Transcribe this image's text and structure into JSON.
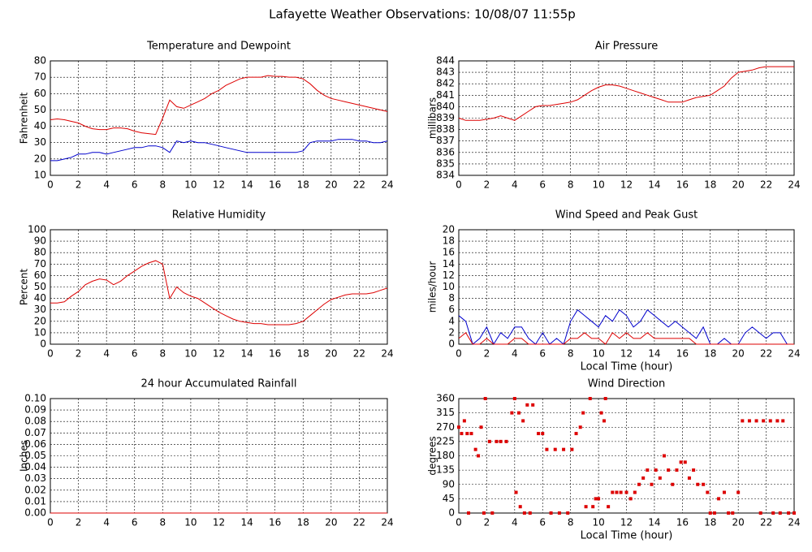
{
  "title": "Lafayette Weather Observations: 10/08/07 11:55p",
  "chart_data": [
    {
      "type": "line",
      "title": "Temperature and Dewpoint",
      "ylabel": "Fahrenheit",
      "x": [
        0,
        0.5,
        1,
        1.5,
        2,
        2.5,
        3,
        3.5,
        4,
        4.5,
        5,
        5.5,
        6,
        6.5,
        7,
        7.5,
        8,
        8.5,
        9,
        9.5,
        10,
        10.5,
        11,
        11.5,
        12,
        12.5,
        13,
        13.5,
        14,
        14.5,
        15,
        15.5,
        16,
        16.5,
        17,
        17.5,
        18,
        18.5,
        19,
        19.5,
        20,
        20.5,
        21,
        21.5,
        22,
        22.5,
        23,
        23.5,
        24
      ],
      "series": [
        {
          "color": "#dd0000",
          "values": [
            44,
            44.5,
            44,
            43,
            42,
            40,
            38.5,
            38,
            38,
            39,
            39,
            38.5,
            37,
            36,
            35.5,
            35,
            45,
            56,
            52,
            51,
            53,
            55,
            57,
            60,
            62,
            65,
            67,
            69,
            70,
            70,
            70,
            71,
            70.5,
            70.5,
            70,
            70,
            69,
            66,
            62,
            59,
            57,
            56,
            55,
            54,
            53,
            52,
            51,
            50,
            49
          ]
        },
        {
          "color": "#0000cc",
          "values": [
            19,
            19,
            20,
            21,
            23,
            23,
            24,
            24,
            23,
            24,
            25,
            26,
            27,
            27,
            28,
            28,
            27,
            24,
            31,
            30,
            31,
            30,
            30,
            29,
            28,
            27,
            26,
            25,
            24,
            24,
            24,
            24,
            24,
            24,
            24,
            24,
            25,
            30,
            31,
            31,
            31,
            32,
            32,
            32,
            31,
            31,
            30,
            30,
            31
          ]
        }
      ],
      "xlim": [
        0,
        24
      ],
      "xticks": [
        0,
        2,
        4,
        6,
        8,
        10,
        12,
        14,
        16,
        18,
        20,
        22,
        24
      ],
      "ylim": [
        10,
        80
      ],
      "yticks": [
        10,
        20,
        30,
        40,
        50,
        60,
        70,
        80
      ],
      "grid": true
    },
    {
      "type": "line",
      "title": "Air Pressure",
      "ylabel": "millibars",
      "x": [
        0,
        0.5,
        1,
        1.5,
        2,
        2.5,
        3,
        3.5,
        4,
        4.5,
        5,
        5.5,
        6,
        6.5,
        7,
        7.5,
        8,
        8.5,
        9,
        9.5,
        10,
        10.5,
        11,
        11.5,
        12,
        12.5,
        13,
        13.5,
        14,
        14.5,
        15,
        15.5,
        16,
        16.5,
        17,
        17.5,
        18,
        18.5,
        19,
        19.5,
        20,
        20.5,
        21,
        21.5,
        22,
        22.5,
        23,
        23.5,
        24
      ],
      "series": [
        {
          "color": "#dd0000",
          "values": [
            839,
            838.8,
            838.8,
            838.8,
            838.9,
            839,
            839.2,
            839,
            838.8,
            839.2,
            839.6,
            840,
            840.1,
            840.1,
            840.2,
            840.3,
            840.4,
            840.6,
            841,
            841.4,
            841.7,
            841.9,
            841.9,
            841.8,
            841.6,
            841.4,
            841.2,
            841,
            840.8,
            840.6,
            840.4,
            840.4,
            840.4,
            840.6,
            840.8,
            840.9,
            841,
            841.4,
            841.8,
            842.5,
            843,
            843.1,
            843.2,
            843.4,
            843.5,
            843.5,
            843.5,
            843.5,
            843.5
          ]
        }
      ],
      "xlim": [
        0,
        24
      ],
      "xticks": [
        0,
        2,
        4,
        6,
        8,
        10,
        12,
        14,
        16,
        18,
        20,
        22,
        24
      ],
      "ylim": [
        834,
        844
      ],
      "yticks": [
        834,
        835,
        836,
        837,
        838,
        839,
        840,
        841,
        842,
        843,
        844
      ],
      "grid": true
    },
    {
      "type": "line",
      "title": "Relative Humidity",
      "ylabel": "Percent",
      "x": [
        0,
        0.5,
        1,
        1.5,
        2,
        2.5,
        3,
        3.5,
        4,
        4.5,
        5,
        5.5,
        6,
        6.5,
        7,
        7.5,
        8,
        8.5,
        9,
        9.5,
        10,
        10.5,
        11,
        11.5,
        12,
        12.5,
        13,
        13.5,
        14,
        14.5,
        15,
        15.5,
        16,
        16.5,
        17,
        17.5,
        18,
        18.5,
        19,
        19.5,
        20,
        20.5,
        21,
        21.5,
        22,
        22.5,
        23,
        23.5,
        24
      ],
      "series": [
        {
          "color": "#dd0000",
          "values": [
            36,
            36,
            37,
            42,
            46,
            52,
            55,
            57,
            56,
            52,
            55,
            60,
            64,
            68,
            71,
            73,
            70,
            40,
            50,
            45,
            42,
            40,
            36,
            32,
            28,
            25,
            22,
            20,
            19,
            18,
            18,
            17,
            17,
            17,
            17,
            18,
            20,
            25,
            30,
            35,
            39,
            41,
            43,
            44,
            44,
            44,
            45,
            47,
            49
          ]
        }
      ],
      "xlim": [
        0,
        24
      ],
      "xticks": [
        0,
        2,
        4,
        6,
        8,
        10,
        12,
        14,
        16,
        18,
        20,
        22,
        24
      ],
      "ylim": [
        0,
        100
      ],
      "yticks": [
        0,
        10,
        20,
        30,
        40,
        50,
        60,
        70,
        80,
        90,
        100
      ],
      "grid": true
    },
    {
      "type": "line",
      "title": "Wind Speed and Peak Gust",
      "ylabel": "miles/hour",
      "xlabel": "Local Time (hour)",
      "x": [
        0,
        0.5,
        1,
        1.5,
        2,
        2.5,
        3,
        3.5,
        4,
        4.5,
        5,
        5.5,
        6,
        6.5,
        7,
        7.5,
        8,
        8.5,
        9,
        9.5,
        10,
        10.5,
        11,
        11.5,
        12,
        12.5,
        13,
        13.5,
        14,
        14.5,
        15,
        15.5,
        16,
        16.5,
        17,
        17.5,
        18,
        18.5,
        19,
        19.5,
        20,
        20.5,
        21,
        21.5,
        22,
        22.5,
        23,
        23.5,
        24
      ],
      "series": [
        {
          "color": "#0000cc",
          "values": [
            5,
            4,
            0,
            1,
            3,
            0,
            2,
            1,
            3,
            3,
            1,
            0,
            2,
            0,
            1,
            0,
            4,
            6,
            5,
            4,
            3,
            5,
            4,
            6,
            5,
            3,
            4,
            6,
            5,
            4,
            3,
            4,
            3,
            2,
            1,
            3,
            0,
            0,
            1,
            0,
            0,
            2,
            3,
            2,
            1,
            2,
            2,
            0,
            0
          ]
        },
        {
          "color": "#dd0000",
          "values": [
            1,
            2,
            0,
            0,
            1,
            0,
            0,
            0,
            1,
            1,
            0,
            0,
            0,
            0,
            0,
            0,
            1,
            1,
            2,
            1,
            1,
            0,
            2,
            1,
            2,
            1,
            1,
            2,
            1,
            1,
            1,
            1,
            1,
            1,
            0,
            0,
            0,
            0,
            0,
            0,
            0,
            0,
            0,
            0,
            0,
            0,
            0,
            0,
            0
          ]
        }
      ],
      "xlim": [
        0,
        24
      ],
      "xticks": [
        0,
        2,
        4,
        6,
        8,
        10,
        12,
        14,
        16,
        18,
        20,
        22,
        24
      ],
      "ylim": [
        0,
        20
      ],
      "yticks": [
        0,
        2,
        4,
        6,
        8,
        10,
        12,
        14,
        16,
        18,
        20
      ],
      "grid": true
    },
    {
      "type": "line",
      "title": "24 hour Accumulated Rainfall",
      "ylabel": "Inches",
      "x": [
        0,
        24
      ],
      "series": [
        {
          "color": "#dd0000",
          "values": [
            0,
            0
          ]
        }
      ],
      "xlim": [
        0,
        24
      ],
      "xticks": [
        0,
        2,
        4,
        6,
        8,
        10,
        12,
        14,
        16,
        18,
        20,
        22,
        24
      ],
      "ylim": [
        0,
        0.1
      ],
      "yticks": [
        {
          "value": 0,
          "label": "0.00"
        },
        {
          "value": 0.01,
          "label": "0.01"
        },
        {
          "value": 0.02,
          "label": "0.02"
        },
        {
          "value": 0.03,
          "label": "0.03"
        },
        {
          "value": 0.04,
          "label": "0.04"
        },
        {
          "value": 0.05,
          "label": "0.05"
        },
        {
          "value": 0.06,
          "label": "0.06"
        },
        {
          "value": 0.07,
          "label": "0.07"
        },
        {
          "value": 0.08,
          "label": "0.08"
        },
        {
          "value": 0.09,
          "label": "0.09"
        },
        {
          "value": 0.1,
          "label": "0.10"
        }
      ],
      "grid": true
    },
    {
      "type": "scatter",
      "title": "Wind Direction",
      "ylabel": "degrees",
      "xlabel": "Local Time (hour)",
      "color": "#dd0000",
      "x": [
        0,
        0.2,
        0.4,
        0.6,
        0.9,
        0.7,
        1.2,
        1.4,
        1.6,
        1.8,
        1.9,
        2.2,
        2.4,
        2.7,
        3,
        3.4,
        3.8,
        4,
        4.1,
        4.3,
        4.4,
        4.6,
        4.7,
        4.9,
        5.1,
        5.3,
        5.7,
        6,
        6.3,
        6.6,
        6.9,
        7.2,
        7.5,
        7.8,
        8.1,
        8.4,
        8.7,
        8.9,
        9.1,
        9.4,
        9.6,
        9.8,
        10,
        10.2,
        10.4,
        10.5,
        10.7,
        11,
        11.3,
        11.6,
        12,
        12.3,
        12.6,
        12.9,
        13.2,
        13.5,
        13.8,
        14.1,
        14.4,
        14.7,
        15,
        15.3,
        15.6,
        15.9,
        16.2,
        16.5,
        16.8,
        17.1,
        17.5,
        17.8,
        18,
        18.3,
        18.6,
        19,
        19.3,
        19.6,
        20,
        20.3,
        20.8,
        21.3,
        21.8,
        22.3,
        22.8,
        23.2,
        21.6,
        22.5,
        23,
        23.6,
        24
      ],
      "values": [
        270,
        250,
        290,
        250,
        250,
        0,
        200,
        180,
        270,
        0,
        360,
        225,
        0,
        225,
        225,
        225,
        315,
        360,
        65,
        315,
        20,
        290,
        0,
        340,
        0,
        340,
        250,
        250,
        200,
        0,
        200,
        0,
        200,
        0,
        200,
        250,
        270,
        315,
        20,
        360,
        20,
        45,
        45,
        315,
        290,
        360,
        20,
        65,
        65,
        65,
        65,
        45,
        65,
        90,
        110,
        135,
        90,
        135,
        110,
        180,
        135,
        90,
        135,
        160,
        160,
        110,
        135,
        90,
        90,
        65,
        0,
        0,
        45,
        65,
        0,
        0,
        65,
        290,
        290,
        290,
        290,
        290,
        290,
        290,
        0,
        0,
        0,
        0,
        0
      ],
      "xlim": [
        0,
        24
      ],
      "xticks": [
        0,
        2,
        4,
        6,
        8,
        10,
        12,
        14,
        16,
        18,
        20,
        22,
        24
      ],
      "ylim": [
        0,
        360
      ],
      "yticks": [
        0,
        45,
        90,
        135,
        180,
        225,
        270,
        315,
        360
      ],
      "grid": true
    }
  ]
}
